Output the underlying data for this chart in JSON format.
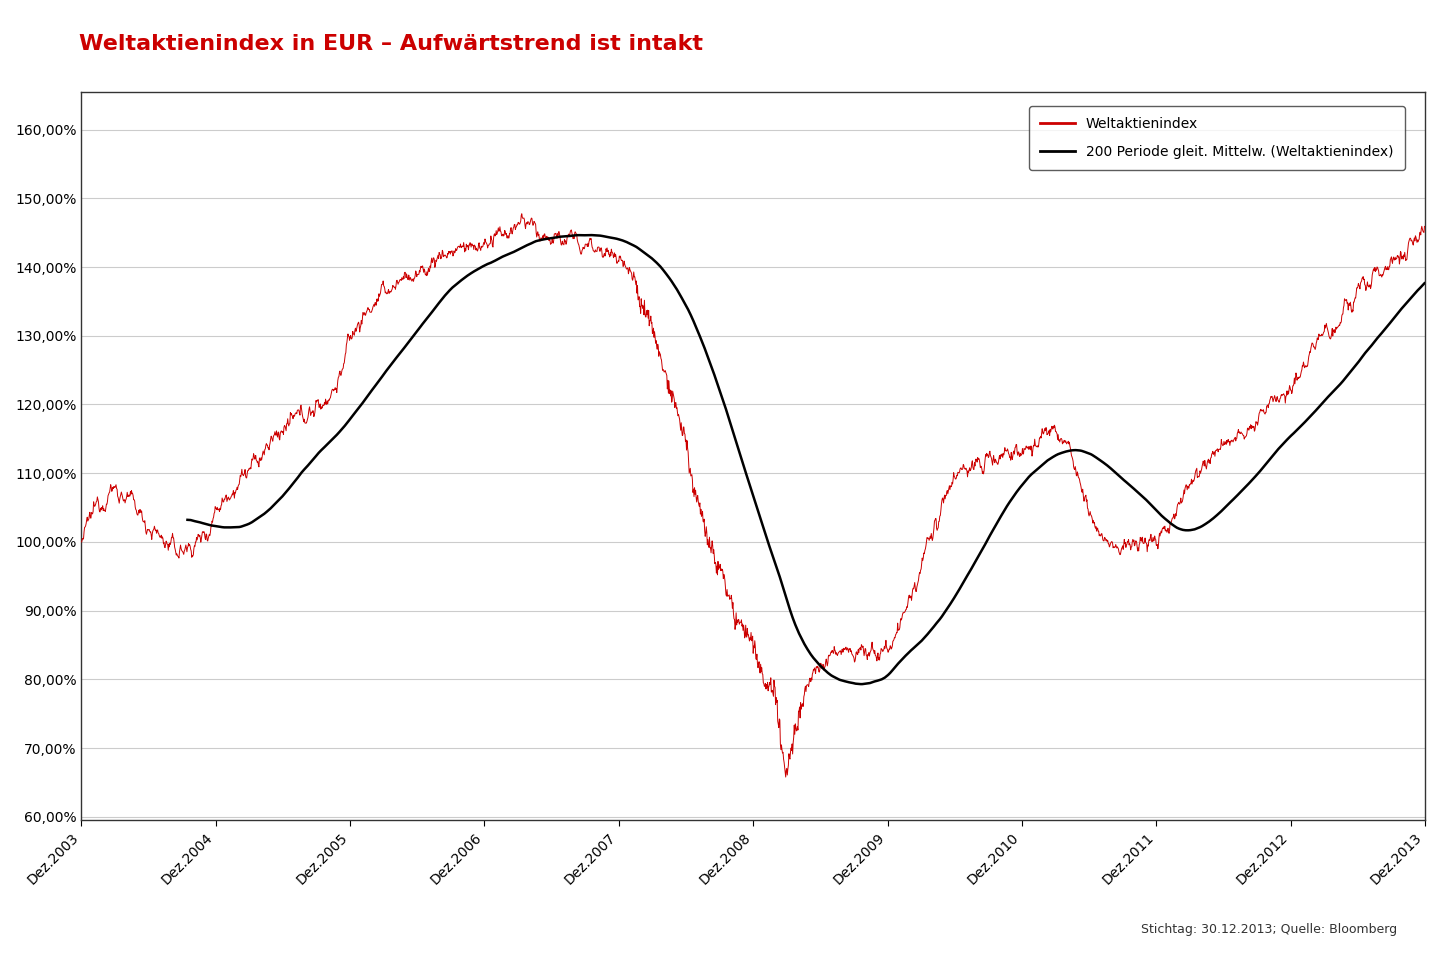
{
  "title": "Weltaktienindex in EUR – Aufwärtstrend ist intakt",
  "title_color": "#cc0000",
  "title_fontsize": 16,
  "footnote": "Stichtag: 30.12.2013; Quelle: Bloomberg",
  "legend_label_red": "Weltaktienindex",
  "legend_label_black": "200 Periode gleit. Mittelw. (Weltaktienindex)",
  "line_color_red": "#cc0000",
  "line_color_black": "#000000",
  "yticks": [
    0.6,
    0.7,
    0.8,
    0.9,
    1.0,
    1.1,
    1.2,
    1.3,
    1.4,
    1.5,
    1.6
  ],
  "xtick_labels": [
    "Dez.2003",
    "Dez.2004",
    "Dez.2005",
    "Dez.2006",
    "Dez.2007",
    "Dez.2008",
    "Dez.2009",
    "Dez.2010",
    "Dez.2011",
    "Dez.2012",
    "Dez.2013"
  ],
  "background_color": "#ffffff",
  "grid_color": "#cccccc",
  "box_color": "#333333",
  "n_years": 10,
  "points_per_year": 252
}
